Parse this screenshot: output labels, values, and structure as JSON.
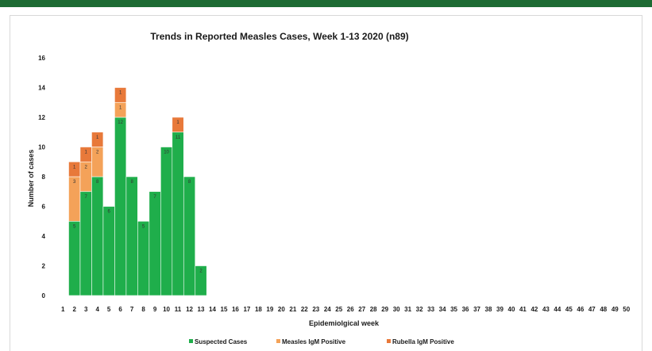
{
  "chart_data": {
    "type": "bar",
    "stacked": true,
    "title": "Trends in Reported Measles Cases, Week 1-13 2020 (n89)",
    "xlabel": "Epidemiolgical week",
    "ylabel": "Number of cases",
    "ylim": [
      0,
      16
    ],
    "yticks": [
      0,
      2,
      4,
      6,
      8,
      10,
      12,
      14,
      16
    ],
    "grid": false,
    "legend_position": "bottom",
    "categories": [
      "1",
      "2",
      "3",
      "4",
      "5",
      "6",
      "7",
      "8",
      "9",
      "10",
      "11",
      "12",
      "13",
      "14",
      "15",
      "16",
      "17",
      "18",
      "19",
      "20",
      "21",
      "22",
      "23",
      "24",
      "25",
      "26",
      "27",
      "28",
      "29",
      "30",
      "31",
      "32",
      "33",
      "34",
      "35",
      "36",
      "37",
      "38",
      "39",
      "40",
      "41",
      "42",
      "43",
      "44",
      "45",
      "46",
      "47",
      "48",
      "49",
      "50"
    ],
    "series": [
      {
        "name": "Suspected Cases",
        "color": "#1fae4b",
        "values": [
          0,
          5,
          7,
          8,
          6,
          12,
          8,
          5,
          7,
          10,
          11,
          8,
          2,
          0,
          0,
          0,
          0,
          0,
          0,
          0,
          0,
          0,
          0,
          0,
          0,
          0,
          0,
          0,
          0,
          0,
          0,
          0,
          0,
          0,
          0,
          0,
          0,
          0,
          0,
          0,
          0,
          0,
          0,
          0,
          0,
          0,
          0,
          0,
          0,
          0
        ]
      },
      {
        "name": "Measles IgM Positive",
        "color": "#f4a259",
        "values": [
          0,
          3,
          2,
          2,
          0,
          1,
          0,
          0,
          0,
          0,
          0,
          0,
          0,
          0,
          0,
          0,
          0,
          0,
          0,
          0,
          0,
          0,
          0,
          0,
          0,
          0,
          0,
          0,
          0,
          0,
          0,
          0,
          0,
          0,
          0,
          0,
          0,
          0,
          0,
          0,
          0,
          0,
          0,
          0,
          0,
          0,
          0,
          0,
          0,
          0
        ]
      },
      {
        "name": "Rubella IgM Positive",
        "color": "#e8793a",
        "values": [
          0,
          1,
          1,
          1,
          0,
          1,
          0,
          0,
          0,
          0,
          1,
          0,
          0,
          0,
          0,
          0,
          0,
          0,
          0,
          0,
          0,
          0,
          0,
          0,
          0,
          0,
          0,
          0,
          0,
          0,
          0,
          0,
          0,
          0,
          0,
          0,
          0,
          0,
          0,
          0,
          0,
          0,
          0,
          0,
          0,
          0,
          0,
          0,
          0,
          0
        ]
      }
    ]
  }
}
